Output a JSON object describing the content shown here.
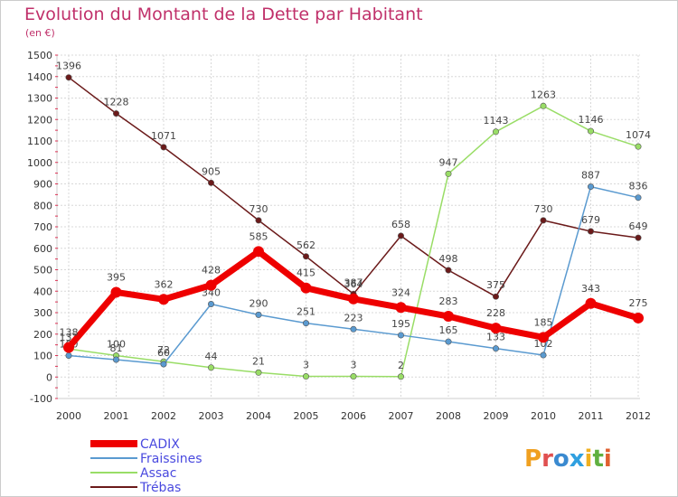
{
  "chart_data": {
    "type": "line",
    "title": "Evolution du Montant de la Dette par Habitant",
    "subtitle": "(en €)",
    "x": [
      "2000",
      "2001",
      "2002",
      "2003",
      "2004",
      "2005",
      "2006",
      "2007",
      "2008",
      "2009",
      "2010",
      "2011",
      "2012"
    ],
    "ylim": [
      -100,
      1500
    ],
    "yticks": [
      -100,
      0,
      100,
      200,
      300,
      400,
      500,
      600,
      700,
      800,
      900,
      1000,
      1100,
      1200,
      1300,
      1400,
      1500
    ],
    "grid": true,
    "legend_position": "bottom-left",
    "series": [
      {
        "name": "Trébas",
        "color": "#6b1a1a",
        "values": [
          1396,
          1228,
          1071,
          905,
          730,
          562,
          387,
          658,
          498,
          375,
          730,
          679,
          649
        ]
      },
      {
        "name": "Assac",
        "color": "#99dd66",
        "values": [
          131,
          100,
          72,
          44,
          21,
          3,
          3,
          2,
          947,
          1143,
          1263,
          1146,
          1074
        ]
      },
      {
        "name": "Fraissines",
        "color": "#5a9ad0",
        "values": [
          100,
          81,
          60,
          340,
          290,
          251,
          223,
          195,
          165,
          133,
          102,
          887,
          836
        ]
      },
      {
        "name": "CADIX",
        "color": "#ee0000",
        "values": [
          138,
          395,
          362,
          428,
          585,
          415,
          364,
          324,
          283,
          228,
          185,
          343,
          275
        ]
      }
    ],
    "legend_order": [
      "CADIX",
      "Fraissines",
      "Assac",
      "Trébas"
    ]
  },
  "logo": {
    "text": "Proxiti"
  }
}
